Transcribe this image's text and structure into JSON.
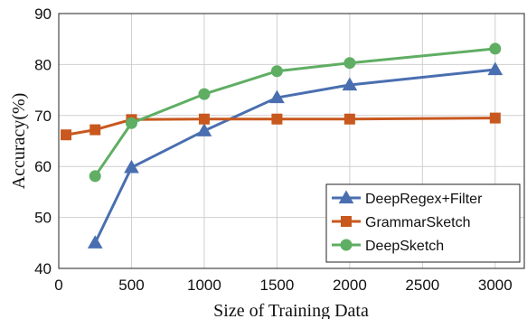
{
  "chart_data": {
    "type": "line",
    "xlabel": "Size of Training Data",
    "ylabel": "Accuracy(%)",
    "xlim": [
      0,
      3200
    ],
    "ylim": [
      40,
      90
    ],
    "xticks": [
      0,
      500,
      1000,
      1500,
      2000,
      2500,
      3000
    ],
    "yticks": [
      40,
      50,
      60,
      70,
      80,
      90
    ],
    "grid": true,
    "legend_position": "bottom-right",
    "series": [
      {
        "name": "DeepRegex+Filter",
        "color": "#4a6fb0",
        "marker": "triangle",
        "x": [
          250,
          500,
          1000,
          1500,
          2000,
          3000
        ],
        "y": [
          45.0,
          59.8,
          67.0,
          73.5,
          76.0,
          79.0
        ]
      },
      {
        "name": "GrammarSketch",
        "color": "#c8581e",
        "marker": "square",
        "x": [
          50,
          250,
          500,
          1000,
          1500,
          2000,
          3000
        ],
        "y": [
          66.2,
          67.2,
          69.2,
          69.3,
          69.3,
          69.3,
          69.5
        ]
      },
      {
        "name": "DeepSketch",
        "color": "#5fae63",
        "marker": "circle",
        "x": [
          250,
          500,
          1000,
          1500,
          2000,
          3000
        ],
        "y": [
          58.1,
          68.5,
          74.2,
          78.7,
          80.3,
          83.1
        ]
      }
    ]
  }
}
